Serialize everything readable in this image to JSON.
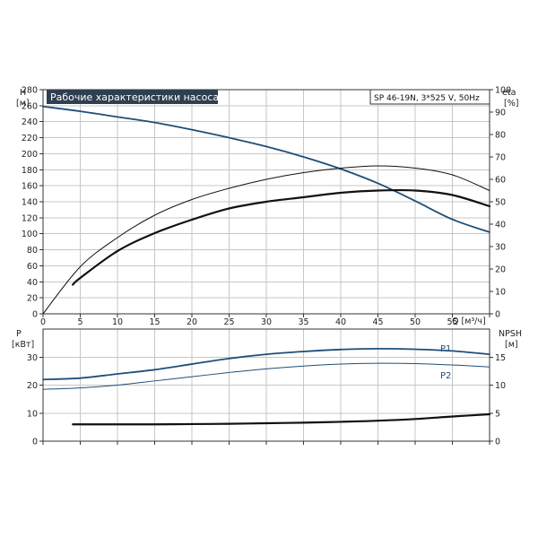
{
  "title": "Рабочие характеристики насоса",
  "info": "SP 46-19N, 3*525 V, 50Hz",
  "colors": {
    "title_bg": "#2f3f50",
    "grid": "#c7c7c7",
    "blue": "#1f4e79",
    "black": "#111111"
  },
  "chart_data": [
    {
      "type": "line",
      "name": "performance",
      "x_label": "Q [м³/ч]",
      "x_ticks": [
        0,
        5,
        10,
        15,
        20,
        25,
        30,
        35,
        40,
        45,
        50,
        55
      ],
      "xlim": [
        0,
        60
      ],
      "y_left_label_1": "H",
      "y_left_label_2": "[м]",
      "y_left_ticks": [
        0,
        20,
        40,
        60,
        80,
        100,
        120,
        140,
        160,
        180,
        200,
        220,
        240,
        260,
        280
      ],
      "y_left_lim": [
        0,
        280
      ],
      "y_right_label_1": "eta",
      "y_right_label_2": "[%]",
      "y_right_ticks": [
        0,
        10,
        20,
        30,
        40,
        50,
        60,
        70,
        80,
        90,
        100
      ],
      "y_right_lim": [
        0,
        100
      ],
      "grid": true,
      "series": [
        {
          "key": "H",
          "axis": "left",
          "color": "#1f4e79",
          "width": 1.8,
          "x": [
            0,
            5,
            10,
            15,
            20,
            25,
            30,
            35,
            40,
            45,
            50,
            55,
            60
          ],
          "y": [
            259,
            253,
            246,
            239,
            230,
            220,
            209,
            196,
            181,
            163,
            141,
            118,
            102
          ]
        },
        {
          "key": "eta_thin",
          "axis": "right",
          "color": "#111111",
          "width": 1.0,
          "x": [
            0,
            5,
            10,
            15,
            20,
            25,
            30,
            35,
            40,
            45,
            50,
            55,
            60
          ],
          "y": [
            0,
            21,
            34,
            44,
            51,
            56,
            60,
            63,
            65,
            66,
            65,
            62,
            55
          ]
        },
        {
          "key": "eta_thick",
          "axis": "right",
          "color": "#111111",
          "width": 2.2,
          "x": [
            4,
            5,
            10,
            15,
            20,
            25,
            30,
            35,
            40,
            45,
            50,
            55,
            60
          ],
          "y": [
            13,
            16,
            28,
            36,
            42,
            47,
            50,
            52,
            54,
            55,
            55,
            53,
            48
          ]
        }
      ]
    },
    {
      "type": "line",
      "name": "power_npsh",
      "xlim": [
        0,
        60
      ],
      "y_left_label_1": "P",
      "y_left_label_2": "[кВт]",
      "y_left_ticks": [
        0,
        10,
        20,
        30
      ],
      "y_left_lim": [
        0,
        40
      ],
      "y_right_label_1": "NPSH",
      "y_right_label_2": "[м]",
      "y_right_ticks": [
        0,
        5,
        10,
        15
      ],
      "y_right_lim": [
        0,
        20
      ],
      "grid": true,
      "series": [
        {
          "key": "P1",
          "name": "P1",
          "axis": "left",
          "color": "#1f4e79",
          "width": 1.8,
          "x": [
            0,
            5,
            10,
            15,
            20,
            25,
            30,
            35,
            40,
            45,
            50,
            55,
            60
          ],
          "y": [
            22,
            22.5,
            24,
            25.5,
            27.5,
            29.5,
            31,
            32,
            32.7,
            33,
            32.8,
            32.2,
            31
          ]
        },
        {
          "key": "P2",
          "name": "P2",
          "axis": "left",
          "color": "#1f4e79",
          "width": 1.0,
          "x": [
            0,
            5,
            10,
            15,
            20,
            25,
            30,
            35,
            40,
            45,
            50,
            55,
            60
          ],
          "y": [
            18.5,
            19,
            20,
            21.5,
            23,
            24.5,
            25.8,
            26.8,
            27.5,
            27.8,
            27.7,
            27.2,
            26.5
          ]
        },
        {
          "key": "NPSH",
          "axis": "right",
          "color": "#111111",
          "width": 2.2,
          "x": [
            4,
            10,
            15,
            20,
            25,
            30,
            35,
            40,
            45,
            50,
            55,
            60
          ],
          "y": [
            3,
            3,
            3,
            3.05,
            3.1,
            3.2,
            3.3,
            3.45,
            3.65,
            3.95,
            4.4,
            4.8
          ]
        }
      ]
    }
  ]
}
